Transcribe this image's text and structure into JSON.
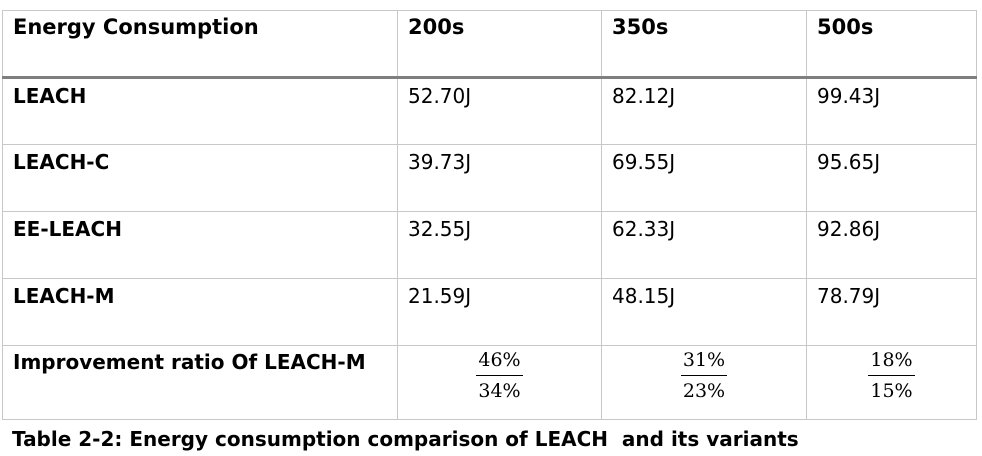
{
  "table": {
    "headers": [
      "Energy Consumption",
      "200s",
      "350s",
      "500s"
    ],
    "rows": [
      {
        "label": "LEACH",
        "values": [
          "52.70J",
          "82.12J",
          "99.43J"
        ]
      },
      {
        "label": "LEACH-C",
        "values": [
          "39.73J",
          "69.55J",
          "95.65J"
        ]
      },
      {
        "label": "EE-LEACH",
        "values": [
          "32.55J",
          "62.33J",
          "92.86J"
        ]
      },
      {
        "label": "LEACH-M",
        "values": [
          "21.59J",
          "48.15J",
          "78.79J"
        ]
      }
    ],
    "ratio_row": {
      "label": "Improvement ratio Of LEACH-M",
      "fractions": [
        {
          "numerator": "46%",
          "denominator": "34%"
        },
        {
          "numerator": "31%",
          "denominator": "23%"
        },
        {
          "numerator": "18%",
          "denominator": "15%"
        }
      ]
    }
  },
  "caption": "Table 2-2: Energy consumption comparison of LEACH  and its variants"
}
